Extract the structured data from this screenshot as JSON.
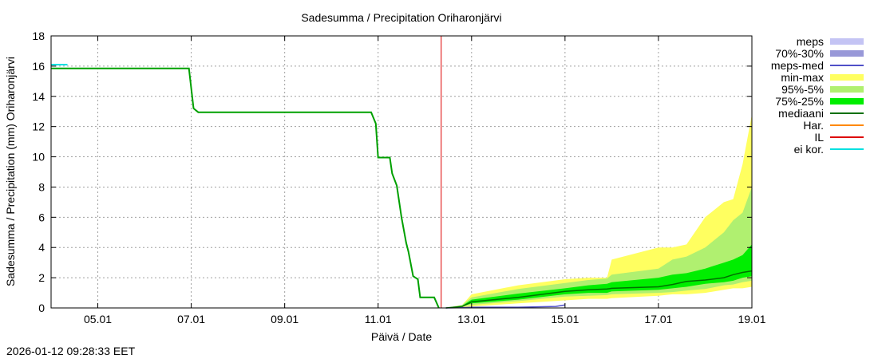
{
  "chart_data": {
    "type": "area",
    "title": "Sadesumma / Precipitation  Oriharonjärvi",
    "xlabel": "Päivä / Date",
    "ylabel": "Sadesumma / Precipitation (mm)  Oriharonjärvi",
    "timestamp": "2026-01-12 09:28:33 EET",
    "grid": true,
    "legend_position": "right",
    "xlim": [
      4.0,
      19.0
    ],
    "ylim": [
      0,
      18
    ],
    "x_ticks": [
      {
        "x": 5.0,
        "label": "05.01"
      },
      {
        "x": 7.0,
        "label": "07.01"
      },
      {
        "x": 9.0,
        "label": "09.01"
      },
      {
        "x": 11.0,
        "label": "11.01"
      },
      {
        "x": 13.0,
        "label": "13.01"
      },
      {
        "x": 15.0,
        "label": "15.01"
      },
      {
        "x": 17.0,
        "label": "17.01"
      },
      {
        "x": 19.0,
        "label": "19.01"
      }
    ],
    "y_ticks": [
      0,
      2,
      4,
      6,
      8,
      10,
      12,
      14,
      16,
      18
    ],
    "legend": [
      {
        "label": "meps",
        "type": "box",
        "color": "#c4c4f4"
      },
      {
        "label": "70%-30%",
        "type": "box",
        "color": "#9898d8"
      },
      {
        "label": "meps-med",
        "type": "line",
        "color": "#5050c8"
      },
      {
        "label": "min-max",
        "type": "box",
        "color": "#ffff60"
      },
      {
        "label": "95%-5%",
        "type": "box",
        "color": "#b0f070"
      },
      {
        "label": "75%-25%",
        "type": "box",
        "color": "#00ee00"
      },
      {
        "label": "mediaani",
        "type": "line",
        "color": "#007000"
      },
      {
        "label": "Har.",
        "type": "line",
        "color": "#ff8800"
      },
      {
        "label": "IL",
        "type": "line",
        "color": "#dd0000"
      },
      {
        "label": "ei kor.",
        "type": "line",
        "color": "#00e0e0"
      }
    ],
    "il_line_x": 12.35,
    "ei_kor": {
      "x": [
        4.0,
        4.35
      ],
      "y": [
        16.1,
        16.1
      ]
    },
    "history": {
      "x": [
        4.0,
        6.95,
        7.05,
        7.15,
        10.85,
        10.95,
        11.0,
        11.25,
        11.3,
        11.4,
        11.5,
        11.6,
        11.65,
        11.75,
        11.85,
        11.9,
        12.0,
        12.2,
        12.3
      ],
      "y": [
        15.85,
        15.85,
        13.2,
        12.95,
        12.95,
        12.2,
        9.95,
        9.95,
        8.9,
        8.1,
        6.0,
        4.3,
        3.7,
        2.1,
        1.9,
        0.7,
        0.7,
        0.7,
        0.0
      ]
    },
    "forecast": {
      "x": [
        12.45,
        12.8,
        13.0,
        14.0,
        15.0,
        15.5,
        15.9,
        16.0,
        17.0,
        17.3,
        17.6,
        18.0,
        18.4,
        18.6,
        18.8,
        19.0
      ],
      "min": [
        0.0,
        0.05,
        0.1,
        0.3,
        0.5,
        0.6,
        0.6,
        0.65,
        0.8,
        0.9,
        0.9,
        1.0,
        1.2,
        1.3,
        1.3,
        1.4
      ],
      "max": [
        0.0,
        0.2,
        0.9,
        1.5,
        1.9,
        2.0,
        2.0,
        3.2,
        4.0,
        4.0,
        4.2,
        6.0,
        7.0,
        7.2,
        9.5,
        12.8
      ],
      "p05": [
        0.0,
        0.1,
        0.2,
        0.45,
        0.75,
        0.8,
        0.85,
        0.9,
        1.0,
        1.05,
        1.15,
        1.25,
        1.5,
        1.55,
        1.7,
        1.8
      ],
      "p95": [
        0.0,
        0.2,
        0.7,
        1.25,
        1.65,
        1.85,
        1.95,
        2.2,
        2.6,
        3.2,
        3.4,
        4.0,
        5.0,
        5.8,
        6.3,
        8.0
      ],
      "p25": [
        0.0,
        0.1,
        0.3,
        0.55,
        0.9,
        1.0,
        1.0,
        1.1,
        1.2,
        1.3,
        1.4,
        1.6,
        1.7,
        1.8,
        2.0,
        2.1
      ],
      "p75": [
        0.0,
        0.15,
        0.55,
        0.95,
        1.3,
        1.5,
        1.6,
        1.7,
        2.0,
        2.2,
        2.3,
        2.6,
        3.0,
        3.2,
        3.5,
        4.2
      ],
      "median": [
        0.0,
        0.1,
        0.4,
        0.7,
        1.1,
        1.2,
        1.25,
        1.3,
        1.4,
        1.55,
        1.75,
        1.85,
        2.0,
        2.2,
        2.35,
        2.45
      ]
    },
    "meps_med": {
      "x": [
        12.45,
        12.8,
        13.0,
        14.0,
        14.8,
        15.0
      ],
      "y": [
        0.0,
        0.02,
        0.05,
        0.05,
        0.1,
        0.2
      ]
    }
  }
}
